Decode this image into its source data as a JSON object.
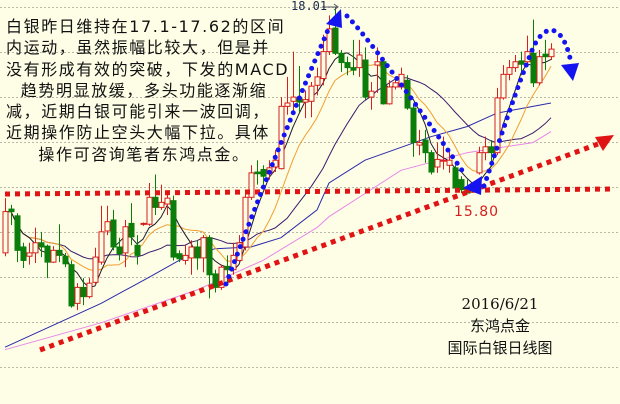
{
  "chart_data": {
    "type": "candlestick",
    "title": "国际白银日线图",
    "date": "2016/6/21",
    "brand": "东鸿点金",
    "colors": {
      "up": "#d81e1e",
      "down": "#0b7d0b",
      "background": "#fefde6",
      "ma5": "#1c1c2c",
      "ma10": "#f0a030",
      "ma20": "#3c1c6c",
      "ma_blue": "#2a2aa8",
      "ma_pink": "#e888e8",
      "annotation_blue": "#1414f0",
      "annotation_red": "#e01414"
    },
    "grid": true,
    "annotations": {
      "high_label": "18.01",
      "low_label": "15.80"
    },
    "candles": [
      [
        15.09,
        15.74,
        15.05,
        15.58
      ],
      [
        15.61,
        15.66,
        15.42,
        15.58
      ],
      [
        15.53,
        15.56,
        14.98,
        15.12
      ],
      [
        15.16,
        15.21,
        14.91,
        15.0
      ],
      [
        15.05,
        15.21,
        14.95,
        15.09
      ],
      [
        15.09,
        15.39,
        14.97,
        15.21
      ],
      [
        15.21,
        15.34,
        15.04,
        15.16
      ],
      [
        15.17,
        15.19,
        14.79,
        14.98
      ],
      [
        14.98,
        15.17,
        14.97,
        15.12
      ],
      [
        15.12,
        15.43,
        14.98,
        15.06
      ],
      [
        15.05,
        15.09,
        14.92,
        14.96
      ],
      [
        14.95,
        15.0,
        14.44,
        14.46
      ],
      [
        14.49,
        14.73,
        14.41,
        14.68
      ],
      [
        14.68,
        14.79,
        14.47,
        14.57
      ],
      [
        14.57,
        14.79,
        14.55,
        14.73
      ],
      [
        14.74,
        15.15,
        14.71,
        15.04
      ],
      [
        14.98,
        15.65,
        14.95,
        15.34
      ],
      [
        15.35,
        15.65,
        15.3,
        15.46
      ],
      [
        15.48,
        15.6,
        15.12,
        15.16
      ],
      [
        15.16,
        15.27,
        15.0,
        15.08
      ],
      [
        15.09,
        15.48,
        14.92,
        15.4
      ],
      [
        15.44,
        15.68,
        15.18,
        15.28
      ],
      [
        15.18,
        15.3,
        14.95,
        15.06
      ],
      [
        15.43,
        15.45,
        15.41,
        15.44
      ],
      [
        15.43,
        15.92,
        15.41,
        15.75
      ],
      [
        15.75,
        16.02,
        15.54,
        15.63
      ],
      [
        15.63,
        15.9,
        15.6,
        15.69
      ],
      [
        15.67,
        15.81,
        15.54,
        15.74
      ],
      [
        15.71,
        15.77,
        15.0,
        15.04
      ],
      [
        15.08,
        15.12,
        14.98,
        15.02
      ],
      [
        15.0,
        15.18,
        14.95,
        15.06
      ],
      [
        15.03,
        15.24,
        14.83,
        15.16
      ],
      [
        15.16,
        15.24,
        14.89,
        15.03
      ],
      [
        15.03,
        15.3,
        14.86,
        15.27
      ],
      [
        15.27,
        15.3,
        14.55,
        14.83
      ],
      [
        14.84,
        14.89,
        14.62,
        14.68
      ],
      [
        14.68,
        14.95,
        14.65,
        14.92
      ],
      [
        14.93,
        15.06,
        14.74,
        14.89
      ],
      [
        14.89,
        15.21,
        14.83,
        15.06
      ],
      [
        15.0,
        15.3,
        14.98,
        15.21
      ],
      [
        15.16,
        15.84,
        15.12,
        15.75
      ],
      [
        15.75,
        16.13,
        15.72,
        16.04
      ],
      [
        16.05,
        16.19,
        15.9,
        16.03
      ],
      [
        16.08,
        16.13,
        15.9,
        16.0
      ],
      [
        16.03,
        16.19,
        15.96,
        16.1
      ],
      [
        16.11,
        16.31,
        16.05,
        16.19
      ],
      [
        16.09,
        16.94,
        16.08,
        16.83
      ],
      [
        16.83,
        17.18,
        16.73,
        16.87
      ],
      [
        16.89,
        17.48,
        16.73,
        16.94
      ],
      [
        16.93,
        17.31,
        16.76,
        16.88
      ],
      [
        16.88,
        17.02,
        16.69,
        16.91
      ],
      [
        16.89,
        17.12,
        16.7,
        17.07
      ],
      [
        17.08,
        17.29,
        16.96,
        17.18
      ],
      [
        17.16,
        17.68,
        17.08,
        17.48
      ],
      [
        17.48,
        17.91,
        17.44,
        17.75
      ],
      [
        17.76,
        18.01,
        17.44,
        17.46
      ],
      [
        17.46,
        17.5,
        17.24,
        17.35
      ],
      [
        17.35,
        17.42,
        17.2,
        17.29
      ],
      [
        17.29,
        17.62,
        17.2,
        17.26
      ],
      [
        17.29,
        17.62,
        17.18,
        17.44
      ],
      [
        17.38,
        17.53,
        16.91,
        16.94
      ],
      [
        16.94,
        17.12,
        16.79,
        17.01
      ],
      [
        17.32,
        17.53,
        16.99,
        17.36
      ],
      [
        17.36,
        17.36,
        16.85,
        16.86
      ],
      [
        16.86,
        17.14,
        16.85,
        17.06
      ],
      [
        17.06,
        17.15,
        17.03,
        17.11
      ],
      [
        17.06,
        17.29,
        17.03,
        17.21
      ],
      [
        17.14,
        17.2,
        16.79,
        16.81
      ],
      [
        16.81,
        16.85,
        16.23,
        16.4
      ],
      [
        16.37,
        16.55,
        16.25,
        16.4
      ],
      [
        16.43,
        16.55,
        16.16,
        16.28
      ],
      [
        16.28,
        16.31,
        16.02,
        16.05
      ],
      [
        16.11,
        16.4,
        16.04,
        16.2
      ],
      [
        16.18,
        16.47,
        16.08,
        16.19
      ],
      [
        16.13,
        16.29,
        16.04,
        16.19
      ],
      [
        16.1,
        16.13,
        15.81,
        15.86
      ],
      [
        15.96,
        16.0,
        15.8,
        15.84
      ],
      [
        15.86,
        15.96,
        15.8,
        15.8
      ],
      [
        15.81,
        15.92,
        15.81,
        15.86
      ],
      [
        16.04,
        16.35,
        16.02,
        16.28
      ],
      [
        16.28,
        16.47,
        16.19,
        16.35
      ],
      [
        16.35,
        16.43,
        16.11,
        16.28
      ],
      [
        16.28,
        17.05,
        16.25,
        16.93
      ],
      [
        16.93,
        17.32,
        16.91,
        17.21
      ],
      [
        17.21,
        17.38,
        17.14,
        17.29
      ],
      [
        17.29,
        17.44,
        17.24,
        17.36
      ],
      [
        17.37,
        17.48,
        17.2,
        17.33
      ],
      [
        17.36,
        17.67,
        17.33,
        17.48
      ],
      [
        17.46,
        17.86,
        17.06,
        17.11
      ],
      [
        17.11,
        17.5,
        17.08,
        17.42
      ],
      [
        17.45,
        17.62,
        17.26,
        17.42
      ],
      [
        17.42,
        17.58,
        17.38,
        17.51
      ]
    ],
    "ma_blue": [
      [
        0,
        13.97
      ],
      [
        8,
        14.23
      ],
      [
        16,
        14.49
      ],
      [
        24,
        14.8
      ],
      [
        29,
        15.0
      ],
      [
        35,
        15.14
      ],
      [
        41,
        15.16
      ],
      [
        46,
        15.27
      ],
      [
        52,
        15.6
      ],
      [
        54,
        15.92
      ],
      [
        60,
        16.19
      ],
      [
        71,
        16.47
      ],
      [
        77,
        16.59
      ],
      [
        82,
        16.75
      ],
      [
        88,
        16.83
      ],
      [
        91,
        16.87
      ]
    ],
    "ma_pink": [
      [
        0,
        13.94
      ],
      [
        16,
        14.26
      ],
      [
        32,
        14.65
      ],
      [
        43,
        15.0
      ],
      [
        52,
        15.39
      ],
      [
        54,
        15.52
      ],
      [
        66,
        16.07
      ],
      [
        77,
        16.28
      ],
      [
        88,
        16.4
      ],
      [
        91,
        16.53
      ]
    ]
  },
  "commentary": {
    "lines": [
      "白银昨日维持在17.1-17.62的区间",
      "内运动，虽然振幅比较大，但是并",
      "没有形成有效的突破，下发的MACD",
      "趋势明显放缓，多头功能逐渐缩",
      "减，近期白银可能引来一波回调，",
      "近期操作防止空头大幅下拉。具体",
      "操作可咨询笔者东鸿点金。"
    ]
  }
}
